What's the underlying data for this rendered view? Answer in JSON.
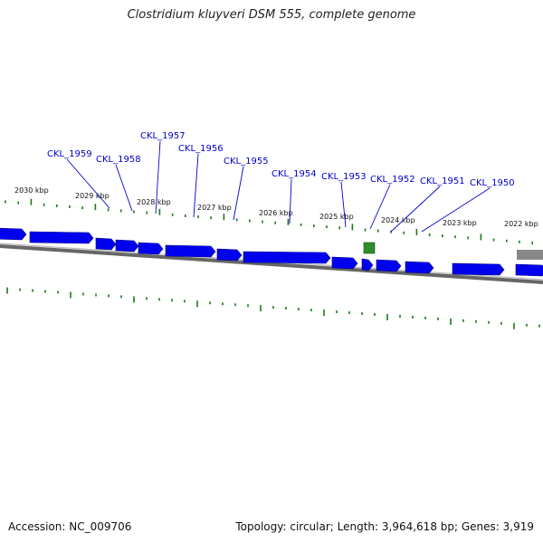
{
  "title": "Clostridium kluyveri DSM 555, complete genome",
  "footer": {
    "accession": "Accession: NC_009706",
    "summary": "Topology: circular; Length: 3,964,618 bp; Genes: 3,919"
  },
  "colors": {
    "cds": "#0000ee",
    "rna_feature": "#2e8b2e",
    "backbone": "#777777",
    "tick": "#1a7a1a",
    "label": "#0000cc"
  },
  "kbp_labels": [
    "2030 kbp",
    "2029 kbp",
    "2028 kbp",
    "2027 kbp",
    "2026 kbp",
    "2025 kbp",
    "2024 kbp",
    "2023 kbp",
    "2022 kbp"
  ],
  "gene_labels": [
    "CKL_1959",
    "CKL_1958",
    "CKL_1957",
    "CKL_1956",
    "CKL_1955",
    "CKL_1954",
    "CKL_1953",
    "CKL_1952",
    "CKL_1951",
    "CKL_1950"
  ]
}
